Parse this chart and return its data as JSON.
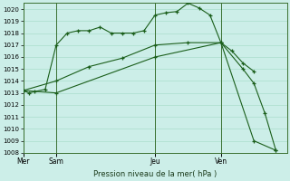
{
  "title": "Pression niveau de la mer( hPa )",
  "bg_color": "#cceee8",
  "grid_color": "#aaddcc",
  "line_color": "#1a5e1a",
  "ylim": [
    1008,
    1020.5
  ],
  "yticks": [
    1008,
    1009,
    1010,
    1011,
    1012,
    1013,
    1014,
    1015,
    1016,
    1017,
    1018,
    1019,
    1020
  ],
  "xlim": [
    0,
    24
  ],
  "day_labels": [
    "Mer",
    "Sam",
    "Jeu",
    "Ven"
  ],
  "day_positions": [
    0,
    3,
    12,
    18
  ],
  "series1_x": [
    0,
    0.5,
    1,
    2,
    3,
    4,
    5,
    6,
    7,
    8,
    9,
    10,
    11,
    12,
    13,
    14,
    15,
    16,
    17,
    18,
    19,
    20,
    21
  ],
  "series1_y": [
    1013.2,
    1013.0,
    1013.1,
    1013.3,
    1017.0,
    1018.0,
    1018.2,
    1018.2,
    1018.5,
    1018.0,
    1018.0,
    1018.0,
    1018.2,
    1019.5,
    1019.7,
    1019.8,
    1020.5,
    1020.1,
    1019.5,
    1017.2,
    1016.5,
    1015.5,
    1014.8
  ],
  "series2_x": [
    0,
    3,
    12,
    18,
    21,
    23
  ],
  "series2_y": [
    1013.2,
    1013.0,
    1016.0,
    1017.2,
    1009.0,
    1008.2
  ],
  "series3_x": [
    0,
    3,
    6,
    9,
    12,
    15,
    18,
    20,
    21,
    22,
    23
  ],
  "series3_y": [
    1013.2,
    1014.0,
    1015.2,
    1015.9,
    1017.0,
    1017.2,
    1017.2,
    1015.0,
    1013.8,
    1011.3,
    1008.2
  ]
}
